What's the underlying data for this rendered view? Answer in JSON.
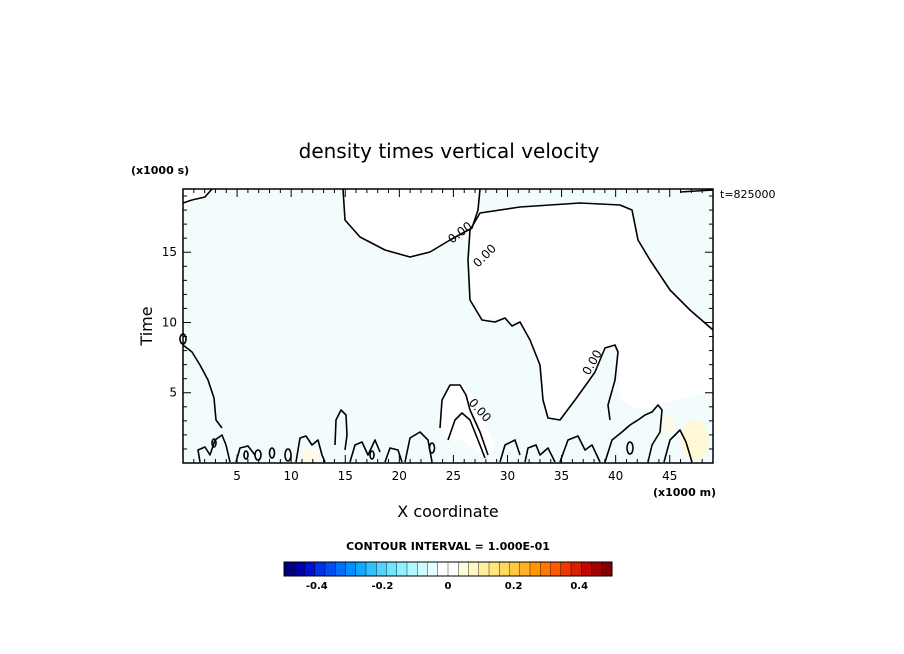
{
  "chart_data": {
    "type": "contour",
    "title": "density times vertical velocity",
    "xlabel": "X coordinate",
    "ylabel": "Time",
    "x_units": "(x1000 m)",
    "y_units": "(x1000 s)",
    "timestamp": "t=825000",
    "xlim": [
      0,
      49
    ],
    "ylim": [
      0,
      19.5
    ],
    "xticks": [
      5,
      10,
      15,
      20,
      25,
      30,
      35,
      40,
      45
    ],
    "yticks": [
      5,
      10,
      15
    ],
    "contour_interval_label": "CONTOUR INTERVAL = 1.000E-01",
    "contour_labels": [
      "0.00",
      "0.00",
      "0.00",
      "0.00"
    ],
    "fill_color": "#f3fcfd",
    "colorbar": {
      "range": [
        -0.5,
        0.5
      ],
      "ticks": [
        -0.4,
        -0.2,
        0,
        0.2,
        0.4
      ],
      "tick_labels": [
        "-0.4",
        "-0.2",
        "0",
        "0.2",
        "0.4"
      ],
      "colors": [
        "#00007e",
        "#0000a8",
        "#0010d0",
        "#0030e8",
        "#0050f0",
        "#0070f8",
        "#0090ff",
        "#10a8ff",
        "#30c0ff",
        "#50d4ff",
        "#70e4ff",
        "#90f0ff",
        "#b0f8ff",
        "#d0fcff",
        "#e8ffff",
        "#ffffff",
        "#ffffff",
        "#fffde0",
        "#fff8c0",
        "#fff0a0",
        "#ffe680",
        "#ffd860",
        "#ffc840",
        "#ffb020",
        "#ff9800",
        "#ff7800",
        "#ff5800",
        "#f03800",
        "#d82000",
        "#c00800",
        "#a00000",
        "#800000"
      ]
    }
  }
}
